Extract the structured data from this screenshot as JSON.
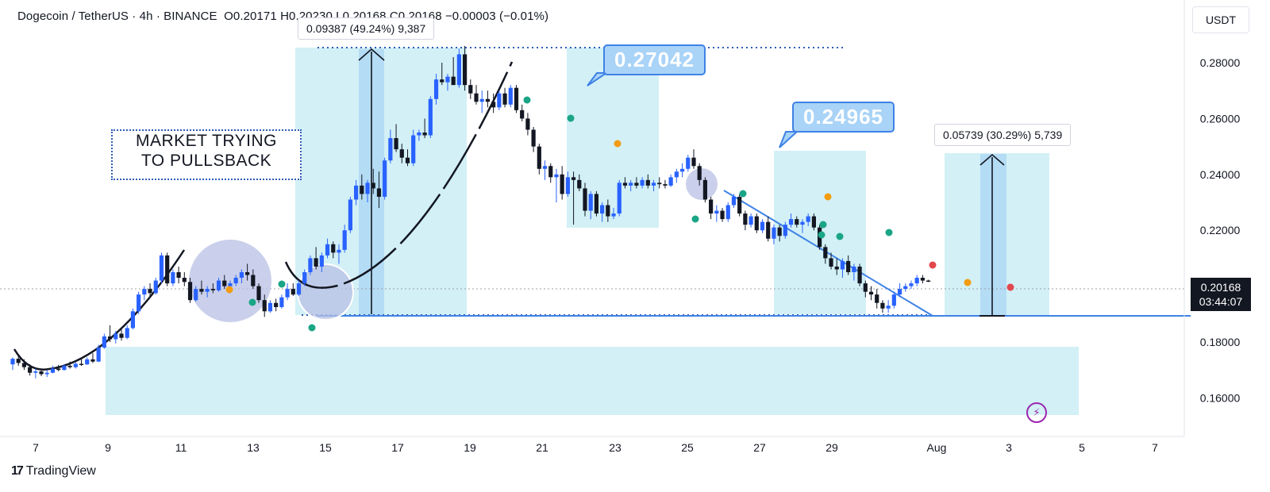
{
  "header": {
    "symbol": "Dogecoin / TetherUS · 4h · BINANCE",
    "ohlc": "O0.20171 H0.20230 L0.20168 C0.20168 −0.00003 (−0.01%)"
  },
  "unit_button": "USDT",
  "brand": {
    "icon": "17",
    "name": "TradingView"
  },
  "measure_labels": [
    "0.09387 (49.24%) 9,387",
    "0.05739 (30.29%) 5,739"
  ],
  "callouts": [
    "0.27042",
    "0.24965"
  ],
  "annotation": {
    "line1": "MARKET TRYING",
    "line2": "TO PULLSBACK"
  },
  "price_badge": {
    "price": "0.20168",
    "countdown": "03:44:07"
  },
  "colors": {
    "bull": "#2962ff",
    "bear": "#131722",
    "zone": "#d2f0f6",
    "trendline": "#3f82e6",
    "orange_dot": "#f39c12",
    "green_dot": "#1aa586",
    "red_dot": "#e2474d"
  },
  "icons": {
    "flash": "flash-icon"
  },
  "chart_data": {
    "type": "candlestick",
    "x_ticks": [
      "7",
      "9",
      "11",
      "13",
      "15",
      "17",
      "19",
      "21",
      "23",
      "25",
      "27",
      "29",
      "Aug",
      "3",
      "5",
      "7"
    ],
    "y_ticks": [
      "0.28000",
      "0.26000",
      "0.24000",
      "0.22000",
      "0.20000",
      "0.18000",
      "0.16000"
    ],
    "ylim": [
      0.15,
      0.29
    ],
    "grid": false,
    "series": [
      {
        "name": "",
        "values": [
          [
            0.172,
            0.1745,
            0.17,
            0.174
          ],
          [
            0.174,
            0.1755,
            0.1715,
            0.1725
          ],
          [
            0.1725,
            0.1738,
            0.17,
            0.171
          ],
          [
            0.171,
            0.172,
            0.168,
            0.169
          ],
          [
            0.169,
            0.1705,
            0.167,
            0.1695
          ],
          [
            0.1695,
            0.1702,
            0.1678,
            0.1685
          ],
          [
            0.1685,
            0.17,
            0.1675,
            0.169
          ],
          [
            0.169,
            0.1715,
            0.1688,
            0.1705
          ],
          [
            0.1705,
            0.1718,
            0.1695,
            0.17
          ],
          [
            0.17,
            0.172,
            0.1698,
            0.1715
          ],
          [
            0.1715,
            0.173,
            0.1705,
            0.171
          ],
          [
            0.171,
            0.1728,
            0.1705,
            0.1722
          ],
          [
            0.1722,
            0.174,
            0.1715,
            0.172
          ],
          [
            0.172,
            0.1745,
            0.1718,
            0.1738
          ],
          [
            0.1738,
            0.176,
            0.1725,
            0.173
          ],
          [
            0.173,
            0.179,
            0.1728,
            0.178
          ],
          [
            0.178,
            0.183,
            0.1775,
            0.182
          ],
          [
            0.182,
            0.186,
            0.18,
            0.181
          ],
          [
            0.181,
            0.184,
            0.1795,
            0.183
          ],
          [
            0.183,
            0.185,
            0.1805,
            0.1815
          ],
          [
            0.1815,
            0.186,
            0.181,
            0.185
          ],
          [
            0.185,
            0.192,
            0.1845,
            0.191
          ],
          [
            0.191,
            0.198,
            0.19,
            0.197
          ],
          [
            0.197,
            0.2,
            0.195,
            0.199
          ],
          [
            0.199,
            0.201,
            0.196,
            0.1975
          ],
          [
            0.1975,
            0.203,
            0.197,
            0.202
          ],
          [
            0.202,
            0.212,
            0.201,
            0.211
          ],
          [
            0.211,
            0.212,
            0.2,
            0.201
          ],
          [
            0.201,
            0.206,
            0.2,
            0.205
          ],
          [
            0.205,
            0.207,
            0.201,
            0.203
          ],
          [
            0.203,
            0.205,
            0.2,
            0.2015
          ],
          [
            0.2015,
            0.203,
            0.194,
            0.195
          ],
          [
            0.195,
            0.2,
            0.1945,
            0.199
          ],
          [
            0.199,
            0.202,
            0.197,
            0.198
          ],
          [
            0.198,
            0.2,
            0.196,
            0.199
          ],
          [
            0.199,
            0.201,
            0.1975,
            0.1985
          ],
          [
            0.1985,
            0.203,
            0.198,
            0.202
          ],
          [
            0.202,
            0.204,
            0.199,
            0.2
          ],
          [
            0.2,
            0.202,
            0.1975,
            0.201
          ],
          [
            0.201,
            0.204,
            0.2,
            0.203
          ],
          [
            0.203,
            0.206,
            0.201,
            0.205
          ],
          [
            0.205,
            0.208,
            0.202,
            0.204
          ],
          [
            0.204,
            0.206,
            0.199,
            0.2
          ],
          [
            0.2,
            0.201,
            0.194,
            0.195
          ],
          [
            0.195,
            0.197,
            0.189,
            0.191
          ],
          [
            0.191,
            0.195,
            0.1905,
            0.194
          ],
          [
            0.194,
            0.1955,
            0.191,
            0.1925
          ],
          [
            0.1925,
            0.197,
            0.192,
            0.196
          ],
          [
            0.196,
            0.201,
            0.195,
            0.199
          ],
          [
            0.199,
            0.201,
            0.1965,
            0.197
          ],
          [
            0.197,
            0.202,
            0.1965,
            0.201
          ],
          [
            0.201,
            0.206,
            0.2,
            0.205
          ],
          [
            0.205,
            0.211,
            0.204,
            0.21
          ],
          [
            0.21,
            0.214,
            0.206,
            0.207
          ],
          [
            0.207,
            0.212,
            0.205,
            0.211
          ],
          [
            0.211,
            0.217,
            0.21,
            0.215
          ],
          [
            0.215,
            0.216,
            0.21,
            0.212
          ],
          [
            0.212,
            0.215,
            0.208,
            0.213
          ],
          [
            0.213,
            0.222,
            0.212,
            0.22
          ],
          [
            0.22,
            0.232,
            0.219,
            0.231
          ],
          [
            0.231,
            0.238,
            0.229,
            0.236
          ],
          [
            0.236,
            0.24,
            0.231,
            0.233
          ],
          [
            0.233,
            0.238,
            0.23,
            0.237
          ],
          [
            0.237,
            0.242,
            0.233,
            0.235
          ],
          [
            0.235,
            0.241,
            0.228,
            0.232
          ],
          [
            0.232,
            0.246,
            0.231,
            0.245
          ],
          [
            0.245,
            0.256,
            0.244,
            0.253
          ],
          [
            0.253,
            0.258,
            0.248,
            0.249
          ],
          [
            0.249,
            0.251,
            0.244,
            0.246
          ],
          [
            0.246,
            0.249,
            0.243,
            0.244
          ],
          [
            0.244,
            0.256,
            0.243,
            0.254
          ],
          [
            0.254,
            0.256,
            0.252,
            0.255
          ],
          [
            0.255,
            0.26,
            0.253,
            0.254
          ],
          [
            0.254,
            0.268,
            0.253,
            0.267
          ],
          [
            0.267,
            0.276,
            0.265,
            0.274
          ],
          [
            0.274,
            0.28,
            0.272,
            0.273
          ],
          [
            0.273,
            0.276,
            0.27,
            0.275
          ],
          [
            0.275,
            0.282,
            0.273,
            0.272
          ],
          [
            0.272,
            0.285,
            0.271,
            0.283
          ],
          [
            0.283,
            0.286,
            0.27,
            0.272
          ],
          [
            0.272,
            0.274,
            0.267,
            0.269
          ],
          [
            0.269,
            0.272,
            0.265,
            0.266
          ],
          [
            0.266,
            0.27,
            0.262,
            0.267
          ],
          [
            0.267,
            0.27,
            0.264,
            0.266
          ],
          [
            0.266,
            0.269,
            0.262,
            0.264
          ],
          [
            0.264,
            0.27,
            0.263,
            0.269
          ],
          [
            0.269,
            0.271,
            0.264,
            0.265
          ],
          [
            0.265,
            0.272,
            0.264,
            0.271
          ],
          [
            0.271,
            0.272,
            0.262,
            0.263
          ],
          [
            0.263,
            0.265,
            0.259,
            0.26
          ],
          [
            0.26,
            0.262,
            0.254,
            0.256
          ],
          [
            0.256,
            0.257,
            0.248,
            0.25
          ],
          [
            0.25,
            0.251,
            0.24,
            0.242
          ],
          [
            0.242,
            0.245,
            0.238,
            0.243
          ],
          [
            0.243,
            0.244,
            0.237,
            0.239
          ],
          [
            0.239,
            0.242,
            0.23,
            0.24
          ],
          [
            0.24,
            0.243,
            0.231,
            0.233
          ],
          [
            0.233,
            0.241,
            0.232,
            0.239
          ],
          [
            0.239,
            0.241,
            0.222,
            0.238
          ],
          [
            0.238,
            0.24,
            0.234,
            0.235
          ],
          [
            0.235,
            0.237,
            0.225,
            0.227
          ],
          [
            0.227,
            0.234,
            0.224,
            0.233
          ],
          [
            0.233,
            0.234,
            0.225,
            0.226
          ],
          [
            0.226,
            0.23,
            0.223,
            0.229
          ],
          [
            0.229,
            0.231,
            0.223,
            0.225
          ],
          [
            0.225,
            0.228,
            0.224,
            0.226
          ],
          [
            0.226,
            0.238,
            0.225,
            0.237
          ],
          [
            0.237,
            0.239,
            0.235,
            0.236
          ],
          [
            0.236,
            0.238,
            0.234,
            0.237
          ],
          [
            0.237,
            0.239,
            0.235,
            0.236
          ],
          [
            0.236,
            0.239,
            0.235,
            0.238
          ],
          [
            0.238,
            0.24,
            0.235,
            0.236
          ],
          [
            0.236,
            0.238,
            0.234,
            0.237
          ],
          [
            0.237,
            0.239,
            0.235,
            0.2365
          ],
          [
            0.2365,
            0.238,
            0.235,
            0.236
          ],
          [
            0.236,
            0.24,
            0.2355,
            0.239
          ],
          [
            0.239,
            0.242,
            0.237,
            0.241
          ],
          [
            0.241,
            0.244,
            0.239,
            0.242
          ],
          [
            0.242,
            0.247,
            0.241,
            0.246
          ],
          [
            0.246,
            0.249,
            0.242,
            0.243
          ],
          [
            0.243,
            0.244,
            0.236,
            0.238
          ],
          [
            0.238,
            0.239,
            0.23,
            0.231
          ],
          [
            0.231,
            0.232,
            0.224,
            0.226
          ],
          [
            0.226,
            0.229,
            0.223,
            0.227
          ],
          [
            0.227,
            0.228,
            0.223,
            0.224
          ],
          [
            0.224,
            0.23,
            0.223,
            0.229
          ],
          [
            0.229,
            0.233,
            0.228,
            0.232
          ],
          [
            0.232,
            0.233,
            0.225,
            0.226
          ],
          [
            0.226,
            0.227,
            0.22,
            0.222
          ],
          [
            0.222,
            0.226,
            0.221,
            0.225
          ],
          [
            0.225,
            0.226,
            0.219,
            0.22
          ],
          [
            0.22,
            0.224,
            0.219,
            0.223
          ],
          [
            0.223,
            0.225,
            0.216,
            0.217
          ],
          [
            0.217,
            0.222,
            0.215,
            0.221
          ],
          [
            0.221,
            0.222,
            0.216,
            0.218
          ],
          [
            0.218,
            0.223,
            0.217,
            0.222
          ],
          [
            0.222,
            0.226,
            0.221,
            0.224
          ],
          [
            0.224,
            0.225,
            0.221,
            0.222
          ],
          [
            0.222,
            0.224,
            0.219,
            0.223
          ],
          [
            0.223,
            0.226,
            0.2215,
            0.225
          ],
          [
            0.225,
            0.226,
            0.22,
            0.221
          ],
          [
            0.221,
            0.222,
            0.213,
            0.214
          ],
          [
            0.214,
            0.215,
            0.208,
            0.21
          ],
          [
            0.21,
            0.212,
            0.206,
            0.207
          ],
          [
            0.207,
            0.21,
            0.204,
            0.206
          ],
          [
            0.206,
            0.21,
            0.203,
            0.209
          ],
          [
            0.209,
            0.211,
            0.204,
            0.205
          ],
          [
            0.205,
            0.208,
            0.202,
            0.207
          ],
          [
            0.207,
            0.208,
            0.2,
            0.201
          ],
          [
            0.201,
            0.202,
            0.196,
            0.198
          ],
          [
            0.198,
            0.2,
            0.195,
            0.197
          ],
          [
            0.197,
            0.199,
            0.192,
            0.194
          ],
          [
            0.194,
            0.195,
            0.1905,
            0.192
          ],
          [
            0.192,
            0.195,
            0.1905,
            0.193
          ],
          [
            0.193,
            0.198,
            0.192,
            0.197
          ],
          [
            0.197,
            0.201,
            0.196,
            0.199
          ],
          [
            0.199,
            0.201,
            0.198,
            0.2
          ],
          [
            0.2,
            0.202,
            0.199,
            0.201
          ],
          [
            0.201,
            0.204,
            0.2,
            0.203
          ],
          [
            0.203,
            0.204,
            0.201,
            0.202
          ],
          [
            0.202,
            0.2023,
            0.2015,
            0.2017
          ]
        ]
      }
    ]
  }
}
